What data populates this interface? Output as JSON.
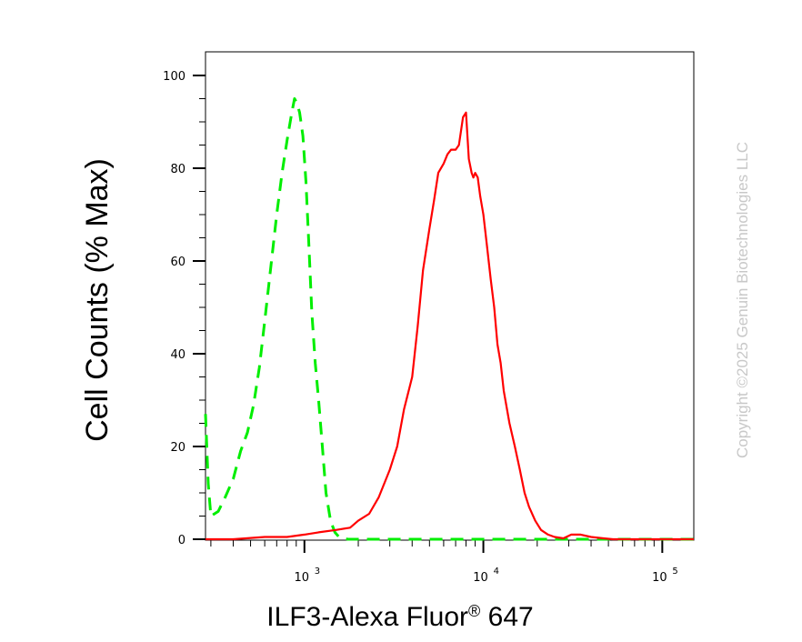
{
  "chart_data": {
    "type": "line",
    "title": "",
    "xlabel": "ILF3-Alexa Fluor",
    "xlabel_registered": "®",
    "xlabel_suffix": " 647",
    "ylabel": "Cell Counts (% Max)",
    "x_scale": "log",
    "xlim": [
      280,
      150000
    ],
    "ylim": [
      0,
      105
    ],
    "y_ticks": [
      0,
      20,
      40,
      60,
      80,
      100
    ],
    "x_ticks": [
      {
        "base": "10",
        "exp": "3",
        "value": 1000
      },
      {
        "base": "10",
        "exp": "4",
        "value": 10000
      },
      {
        "base": "10",
        "exp": "5",
        "value": 100000
      }
    ],
    "grid": false,
    "series": [
      {
        "color": "#00ee00",
        "style": "dashed",
        "x": [
          280,
          290,
          300,
          330,
          360,
          400,
          440,
          480,
          520,
          560,
          600,
          650,
          700,
          750,
          800,
          850,
          880,
          910,
          940,
          980,
          1020,
          1060,
          1100,
          1150,
          1200,
          1260,
          1320,
          1400,
          1480,
          1560,
          1650,
          1750,
          1850,
          2000,
          2500,
          4000,
          10000,
          30000,
          100000,
          150000
        ],
        "y": [
          27,
          12,
          5,
          6,
          9,
          13,
          19,
          23,
          29,
          37,
          47,
          59,
          70,
          79,
          86,
          92,
          95,
          94,
          92,
          87,
          77,
          63,
          49,
          38,
          30,
          20,
          10,
          4,
          1.5,
          0.5,
          0.2,
          0,
          0,
          0,
          0,
          0,
          0,
          0,
          0,
          0
        ]
      },
      {
        "color": "#ff0000",
        "style": "solid",
        "x": [
          280,
          400,
          600,
          800,
          1000,
          1200,
          1500,
          1800,
          2000,
          2300,
          2600,
          3000,
          3300,
          3600,
          4000,
          4300,
          4600,
          5000,
          5300,
          5600,
          6000,
          6300,
          6600,
          7000,
          7300,
          7700,
          8000,
          8300,
          8600,
          8800,
          9000,
          9300,
          9600,
          10000,
          10500,
          11000,
          11500,
          12000,
          12500,
          13000,
          14000,
          15000,
          16000,
          17000,
          18000,
          19500,
          21000,
          23000,
          25000,
          28000,
          31000,
          35000,
          40000,
          47000,
          53000,
          60000,
          70000,
          80000,
          100000,
          150000
        ],
        "y": [
          0,
          0,
          0.5,
          0.5,
          1,
          1.5,
          2,
          2.5,
          4,
          5.5,
          9,
          15,
          20,
          28,
          35,
          46,
          58,
          67,
          73,
          79,
          81,
          83,
          84,
          84,
          85,
          91,
          92,
          82,
          79,
          78,
          79,
          78,
          74,
          70,
          63,
          56,
          50,
          42,
          38,
          32,
          25,
          20,
          15,
          10,
          7,
          4,
          2,
          1,
          0.5,
          0.2,
          1,
          1,
          0.5,
          0.2,
          0,
          0,
          0,
          0,
          0,
          0
        ]
      }
    ]
  },
  "copyright": "Copyright ©2025 Genuin Biotechnologies LLC"
}
